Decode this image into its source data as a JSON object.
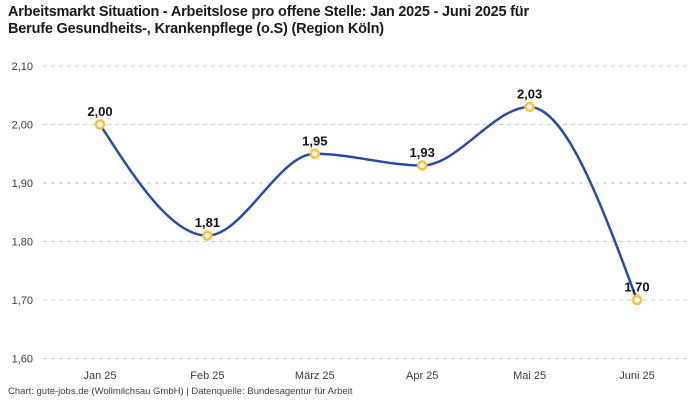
{
  "header": {
    "title_lines": [
      "Arbeitsmarkt Situation - Arbeitslose pro offene Stelle: Jan 2025 - Juni 2025 für",
      "Berufe Gesundheits-, Krankenpflege (o.S) (Region Köln)"
    ],
    "title_full": "Arbeitsmarkt Situation - Arbeitslose pro offene Stelle: Jan 2025 - Juni 2025 für Berufe Gesundheits-, Krankenpflege (o.S) (Region Köln)"
  },
  "footer": {
    "credit": "Chart: gute-jobs.de (Wollmilchsau GmbH) | Datenquelle: Bundesagentur für Arbeit"
  },
  "chart_data": {
    "type": "line",
    "title": "Arbeitsmarkt Situation - Arbeitslose pro offene Stelle: Jan 2025 - Juni 2025 für Berufe Gesundheits-, Krankenpflege (o.S) (Region Köln)",
    "categories": [
      "Jan 25",
      "Feb 25",
      "März 25",
      "Apr 25",
      "Mai 25",
      "Juni 25"
    ],
    "values": [
      2.0,
      1.81,
      1.95,
      1.93,
      2.03,
      1.7
    ],
    "value_labels": [
      "2,00",
      "1,81",
      "1,95",
      "1,93",
      "2,03",
      "1,70"
    ],
    "y_ticks": [
      {
        "value": 2.1,
        "label": "2,10"
      },
      {
        "value": 2.0,
        "label": "2,00"
      },
      {
        "value": 1.9,
        "label": "1,90"
      },
      {
        "value": 1.8,
        "label": "1,80"
      },
      {
        "value": 1.7,
        "label": "1,70"
      },
      {
        "value": 1.6,
        "label": "1,60"
      }
    ],
    "ylim": [
      1.6,
      2.1
    ],
    "xlabel": "",
    "ylabel": "",
    "grid": "horizontal-dashed",
    "legend": "none",
    "smoothing": "monotone",
    "colors": {
      "line": "#2b49ad",
      "marker_stroke": "#fdc132",
      "marker_fill": "#ffffff",
      "grid": "#cbcbcb",
      "tick_text": "#3c3c3c",
      "point_label_text": "#141414"
    }
  }
}
